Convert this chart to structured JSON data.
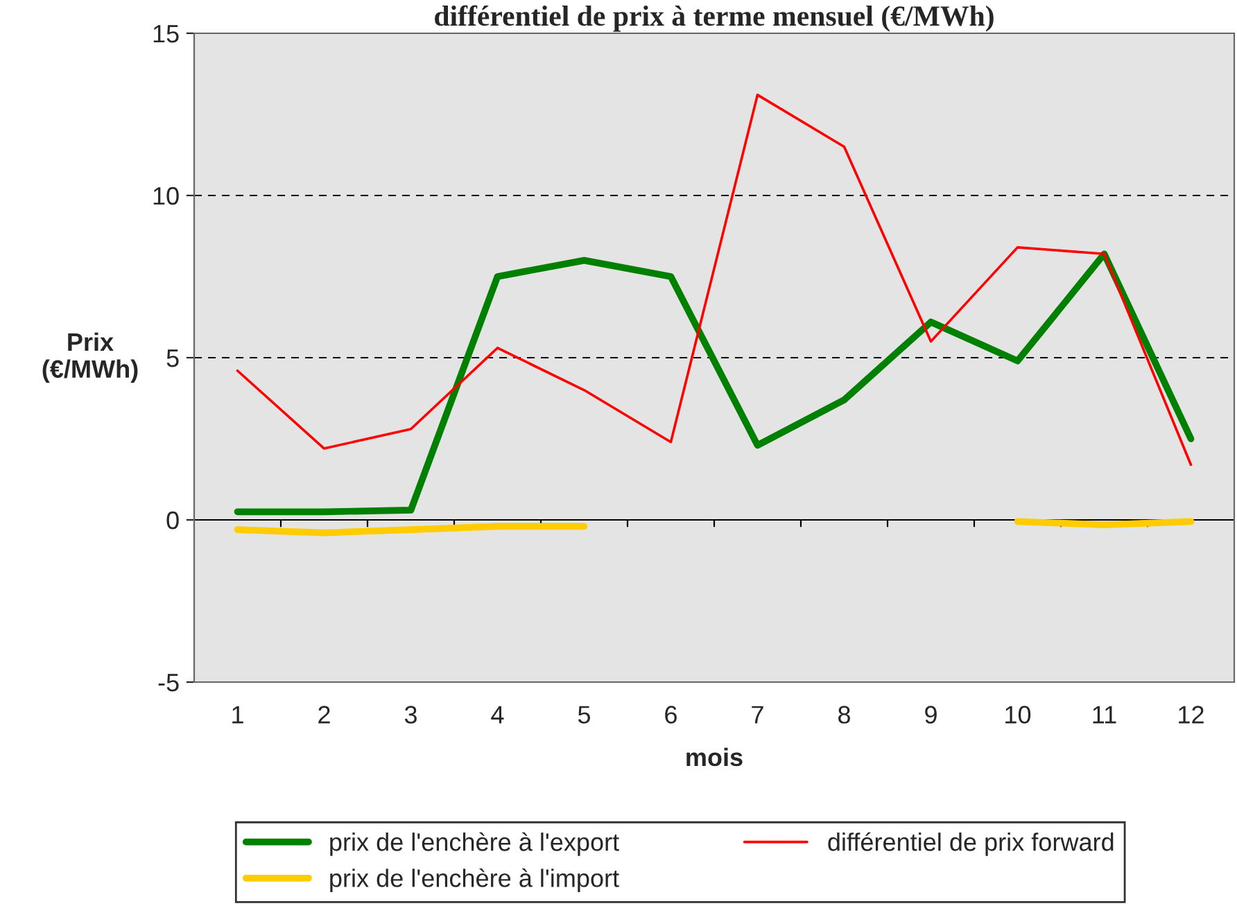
{
  "chart_data": {
    "type": "line",
    "title": "différentiel de prix à terme mensuel (€/MWh)",
    "xlabel": "mois",
    "ylabel": "Prix\n(€/MWh)",
    "categories": [
      "1",
      "2",
      "3",
      "4",
      "5",
      "6",
      "7",
      "8",
      "9",
      "10",
      "11",
      "12"
    ],
    "series": [
      {
        "name": "prix de l'enchère à l'export",
        "color": "#008000",
        "values": [
          0.25,
          0.25,
          0.3,
          7.5,
          8.0,
          7.5,
          2.3,
          3.7,
          6.1,
          4.9,
          8.2,
          2.5
        ]
      },
      {
        "name": "prix de l'enchère à l'import",
        "color": "#ffcc00",
        "values": [
          -0.3,
          -0.4,
          -0.3,
          -0.2,
          -0.2,
          null,
          null,
          null,
          null,
          -0.05,
          -0.15,
          -0.05
        ]
      },
      {
        "name": "différentiel de prix forward",
        "color": "#ff0000",
        "values": [
          4.6,
          2.2,
          2.8,
          5.3,
          4.0,
          2.4,
          13.1,
          11.5,
          5.5,
          8.4,
          8.2,
          1.7
        ]
      }
    ],
    "ylim": [
      -5,
      15
    ],
    "yticks": [
      -5,
      0,
      5,
      10,
      15
    ],
    "grid": "y",
    "legend": "bottom",
    "marker": "none",
    "line_style": "solid"
  }
}
